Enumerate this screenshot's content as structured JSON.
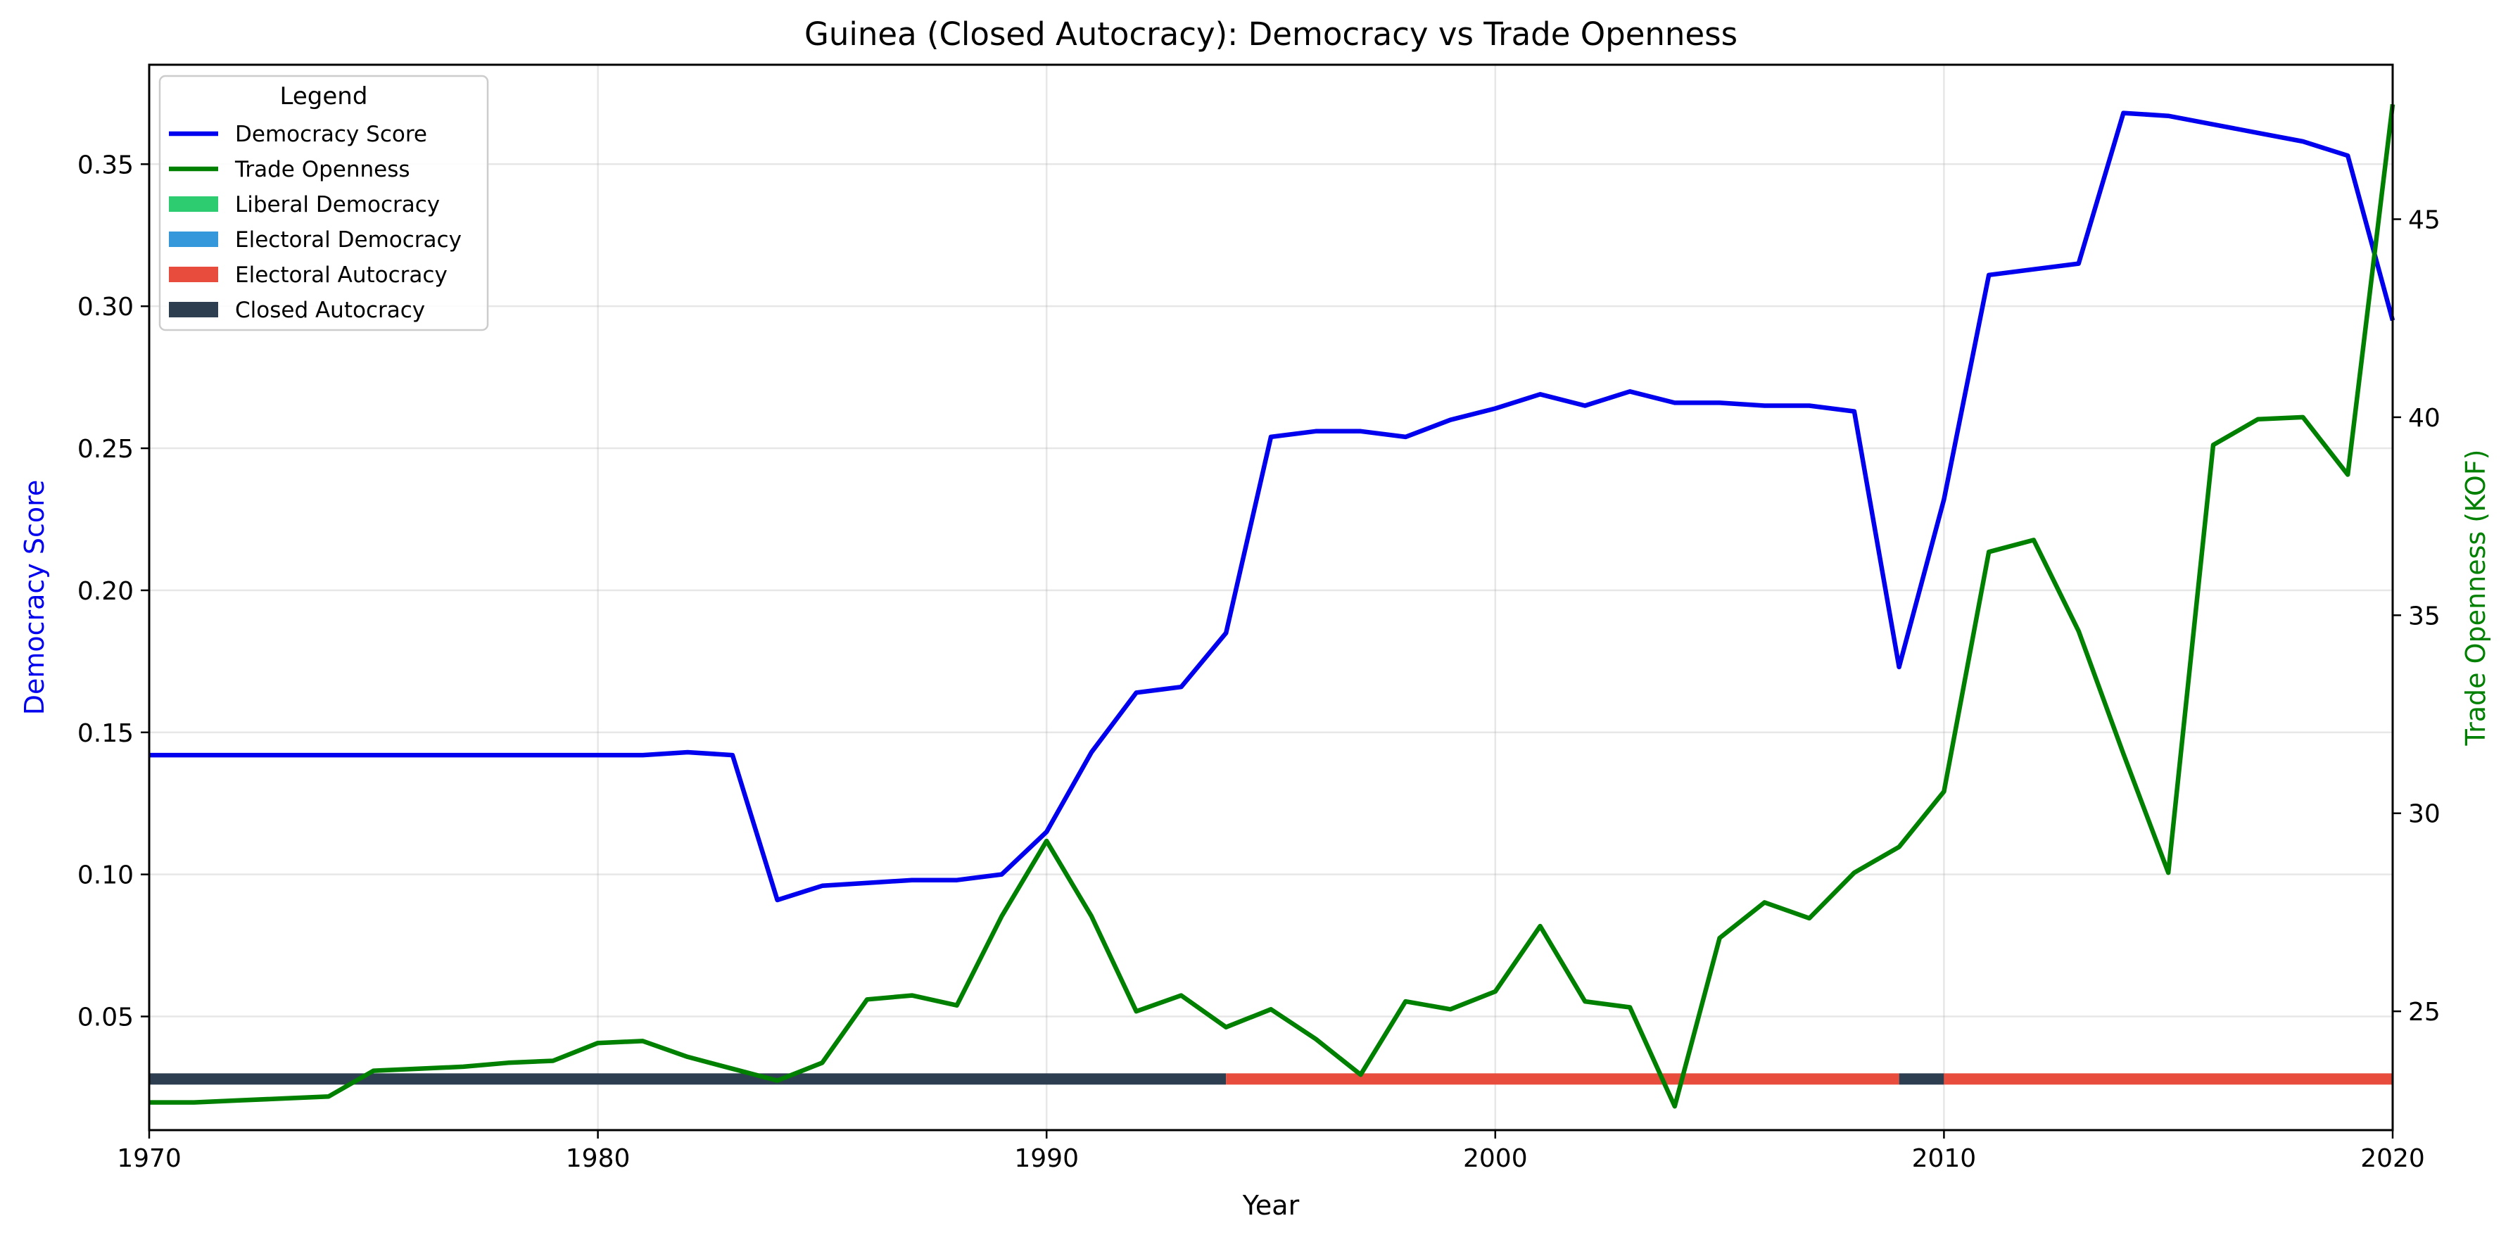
{
  "chart_data": {
    "type": "line",
    "title": "Guinea (Closed Autocracy): Democracy vs Trade Openness",
    "xlabel": "Year",
    "ylabel_left": "Democracy Score",
    "ylabel_right": "Trade Openness (KOF)",
    "xlim": [
      1970,
      2020
    ],
    "ylim_left": [
      0.01,
      0.385
    ],
    "ylim_right": [
      22.0,
      48.9
    ],
    "x_ticks": [
      1970,
      1980,
      1990,
      2000,
      2010,
      2020
    ],
    "y_left_ticks": [
      "0.05",
      "0.10",
      "0.15",
      "0.20",
      "0.25",
      "0.30",
      "0.35"
    ],
    "y_right_ticks": [
      "25",
      "30",
      "35",
      "40",
      "45"
    ],
    "grid": true,
    "legend": {
      "title": "Legend",
      "placement": "upper-left",
      "entries": [
        {
          "label": "Democracy Score",
          "kind": "line",
          "color": "#0000ee"
        },
        {
          "label": "Trade Openness",
          "kind": "line",
          "color": "#008000"
        },
        {
          "label": "Liberal Democracy",
          "kind": "patch",
          "color": "#2ecc71"
        },
        {
          "label": "Electoral Democracy",
          "kind": "patch",
          "color": "#3498db"
        },
        {
          "label": "Electoral Autocracy",
          "kind": "patch",
          "color": "#e74c3c"
        },
        {
          "label": "Closed Autocracy",
          "kind": "patch",
          "color": "#2c3e50"
        }
      ]
    },
    "series": [
      {
        "name": "Democracy Score",
        "axis": "left",
        "color": "#0000ee",
        "x": [
          1970,
          1971,
          1972,
          1973,
          1974,
          1975,
          1976,
          1977,
          1978,
          1979,
          1980,
          1981,
          1982,
          1983,
          1984,
          1985,
          1986,
          1987,
          1988,
          1989,
          1990,
          1991,
          1992,
          1993,
          1994,
          1995,
          1996,
          1997,
          1998,
          1999,
          2000,
          2001,
          2002,
          2003,
          2004,
          2005,
          2006,
          2007,
          2008,
          2009,
          2010,
          2011,
          2012,
          2013,
          2014,
          2015,
          2016,
          2017,
          2018,
          2019,
          2020
        ],
        "y": [
          0.142,
          0.142,
          0.142,
          0.142,
          0.142,
          0.142,
          0.142,
          0.142,
          0.142,
          0.142,
          0.142,
          0.142,
          0.143,
          0.142,
          0.091,
          0.096,
          0.097,
          0.098,
          0.098,
          0.1,
          0.115,
          0.143,
          0.164,
          0.166,
          0.185,
          0.254,
          0.256,
          0.256,
          0.254,
          0.26,
          0.264,
          0.269,
          0.265,
          0.27,
          0.266,
          0.266,
          0.265,
          0.265,
          0.263,
          0.173,
          0.232,
          0.311,
          0.313,
          0.315,
          0.368,
          0.367,
          0.364,
          0.361,
          0.358,
          0.353,
          0.295
        ]
      },
      {
        "name": "Trade Openness",
        "axis": "right",
        "color": "#008000",
        "x": [
          1970,
          1971,
          1972,
          1973,
          1974,
          1975,
          1976,
          1977,
          1978,
          1979,
          1980,
          1981,
          1982,
          1983,
          1984,
          1985,
          1986,
          1987,
          1988,
          1989,
          1990,
          1991,
          1992,
          1993,
          1994,
          1995,
          1996,
          1997,
          1998,
          1999,
          2000,
          2001,
          2002,
          2003,
          2004,
          2005,
          2006,
          2007,
          2008,
          2009,
          2010,
          2011,
          2012,
          2013,
          2014,
          2015,
          2016,
          2017,
          2018,
          2019,
          2020
        ],
        "y": [
          22.7,
          22.7,
          22.75,
          22.8,
          22.85,
          23.5,
          23.55,
          23.6,
          23.7,
          23.75,
          24.2,
          24.25,
          23.85,
          23.55,
          23.25,
          23.7,
          25.3,
          25.4,
          25.15,
          27.4,
          29.3,
          27.4,
          25.0,
          25.4,
          24.6,
          25.05,
          24.3,
          23.4,
          25.25,
          25.05,
          25.5,
          27.15,
          25.25,
          25.1,
          22.6,
          26.85,
          27.75,
          27.35,
          28.5,
          29.15,
          30.55,
          36.6,
          36.9,
          34.6,
          31.5,
          28.5,
          39.3,
          39.95,
          40.0,
          38.55,
          47.9
        ]
      }
    ],
    "regime_bar": {
      "y": 0.028,
      "segments": [
        {
          "start": 1970,
          "end": 1994,
          "regime": "Closed Autocracy",
          "color": "#2c3e50"
        },
        {
          "start": 1994,
          "end": 2009,
          "regime": "Electoral Autocracy",
          "color": "#e74c3c"
        },
        {
          "start": 2009,
          "end": 2010,
          "regime": "Closed Autocracy",
          "color": "#2c3e50"
        },
        {
          "start": 2010,
          "end": 2020,
          "regime": "Electoral Autocracy",
          "color": "#e74c3c"
        }
      ]
    }
  }
}
